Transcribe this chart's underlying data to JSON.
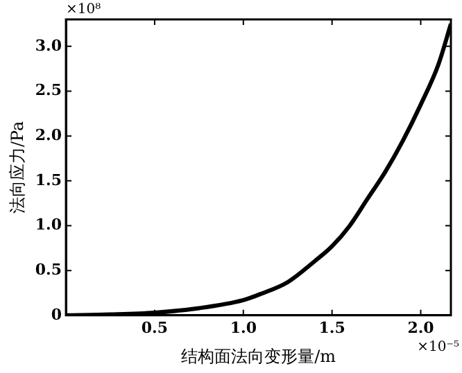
{
  "chart_data": {
    "type": "line",
    "xlabel": "结构面法向变形量/m",
    "ylabel": "法向应力/Pa",
    "annotations": [
      "×10⁸",
      "×10⁻⁵"
    ],
    "x": [
      0,
      0.25,
      0.5,
      0.75,
      1.0,
      1.1,
      1.25,
      1.4,
      1.5,
      1.6,
      1.7,
      1.8,
      1.9,
      2.0,
      2.1,
      2.17
    ],
    "series": [
      {
        "color": "#000000",
        "values": [
          0,
          0.01,
          0.03,
          0.08,
          0.17,
          0.24,
          0.37,
          0.6,
          0.77,
          1.0,
          1.3,
          1.6,
          1.95,
          2.35,
          2.8,
          3.25
        ]
      }
    ],
    "xlim": [
      0,
      2.17
    ],
    "xticks": [
      {
        "value": 0.5,
        "label": "0.5"
      },
      {
        "value": 1,
        "label": "1.0"
      },
      {
        "value": 1.5,
        "label": "1.5"
      },
      {
        "value": 2,
        "label": "2.0"
      }
    ],
    "ylim": [
      0,
      3.3
    ],
    "yticks": [
      0,
      {
        "value": 0.5,
        "label": "0.5"
      },
      {
        "value": 1,
        "label": "1.0"
      },
      {
        "value": 1.5,
        "label": "1.5"
      },
      {
        "value": 2,
        "label": "2.0"
      },
      {
        "value": 2.5,
        "label": "2.5"
      },
      {
        "value": 3,
        "label": "3.0"
      }
    ],
    "marker": "none",
    "line_style": "solid",
    "legend": false
  }
}
